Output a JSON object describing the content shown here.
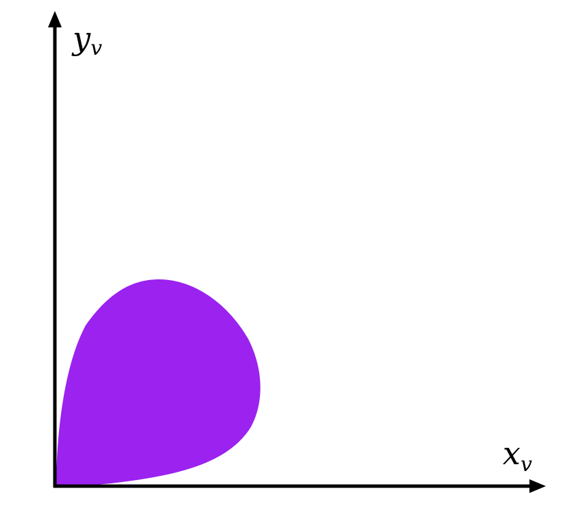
{
  "diagram": {
    "colors": {
      "region_fill": "#9B22EF",
      "axis": "#000000",
      "background": "#ffffff"
    },
    "axes": {
      "x_label": {
        "base": "x",
        "subscript": "v"
      },
      "y_label": {
        "base": "y",
        "subscript": "v"
      }
    },
    "region": {
      "shape": "teardrop-region-at-origin"
    }
  }
}
